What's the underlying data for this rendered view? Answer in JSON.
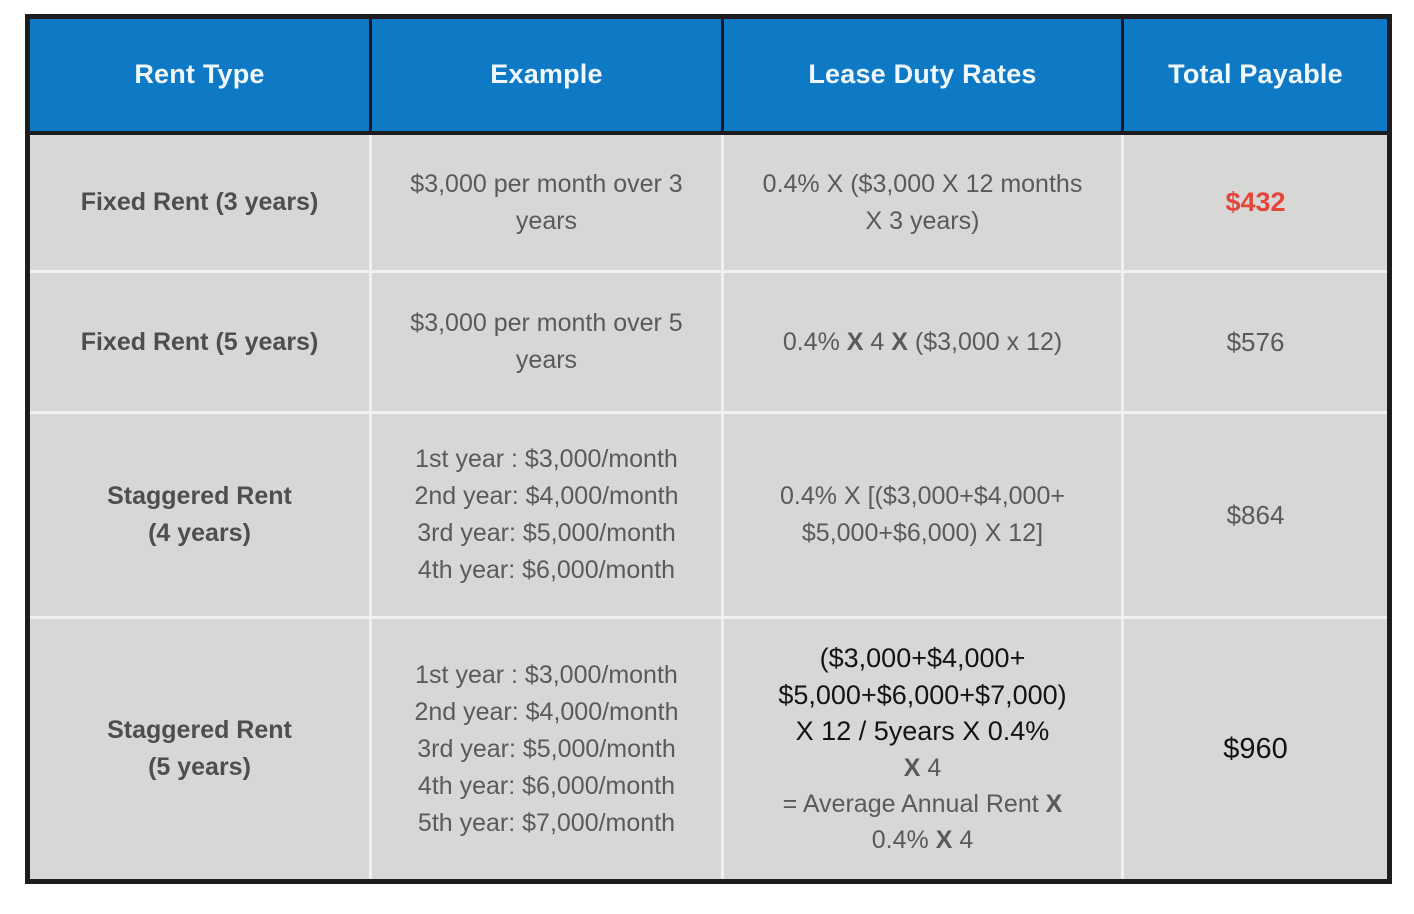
{
  "colors": {
    "header_bg": "#0e7ac5",
    "body_bg": "#d7d7d6",
    "border_dark": "#1d1d1f",
    "header_sep": "#15161e",
    "sep": "#f1f1f0",
    "gray_text": "#595a5c",
    "gray_dark": "#4e4e50",
    "red": "#e8453a",
    "black_text": "#131313"
  },
  "header": {
    "columns": [
      "Rent Type",
      "Example",
      "Lease Duty Rates",
      "Total Payable"
    ]
  },
  "rows": [
    {
      "rent_type": "Fixed Rent (3 years)",
      "example": "$3,000 per month over 3\nyears",
      "rate": "0.4% X ($3,000 X 12 months\nX 3 years)",
      "total": "$432"
    },
    {
      "rent_type": "Fixed Rent (5 years)",
      "example": "$3,000 per month over 5\nyears",
      "rate_segments": {
        "s0": "0.4% ",
        "x1": "X",
        "s1": " 4 ",
        "x2": "X",
        "s2": " ($3,000 x 12)"
      },
      "total": "$576"
    },
    {
      "rent_type": "Staggered Rent\n(4 years)",
      "example": "1st year : $3,000/month\n2nd year: $4,000/month\n3rd year: $5,000/month\n4th year: $6,000/month",
      "rate": "0.4% X [($3,000+$4,000+\n$5,000+$6,000) X 12]",
      "total": "$864"
    },
    {
      "rent_type": "Staggered Rent\n(5 years)",
      "example": "1st year : $3,000/month\n2nd year: $4,000/month\n3rd year: $5,000/month\n4th year: $6,000/month\n5th year: $7,000/month",
      "rate_black": "($3,000+$4,000+\n$5,000+$6,000+$7,000)\nX 12 / 5years X 0.4%",
      "rate_gray": {
        "l1_x": "X",
        "l1_rest": " 4",
        "l2_rest": "= Average Annual Rent ",
        "l2_x": "X",
        "l3_pre": "0.4% ",
        "l3_x": "X",
        "l3_post": " 4"
      },
      "total": "$960"
    }
  ]
}
